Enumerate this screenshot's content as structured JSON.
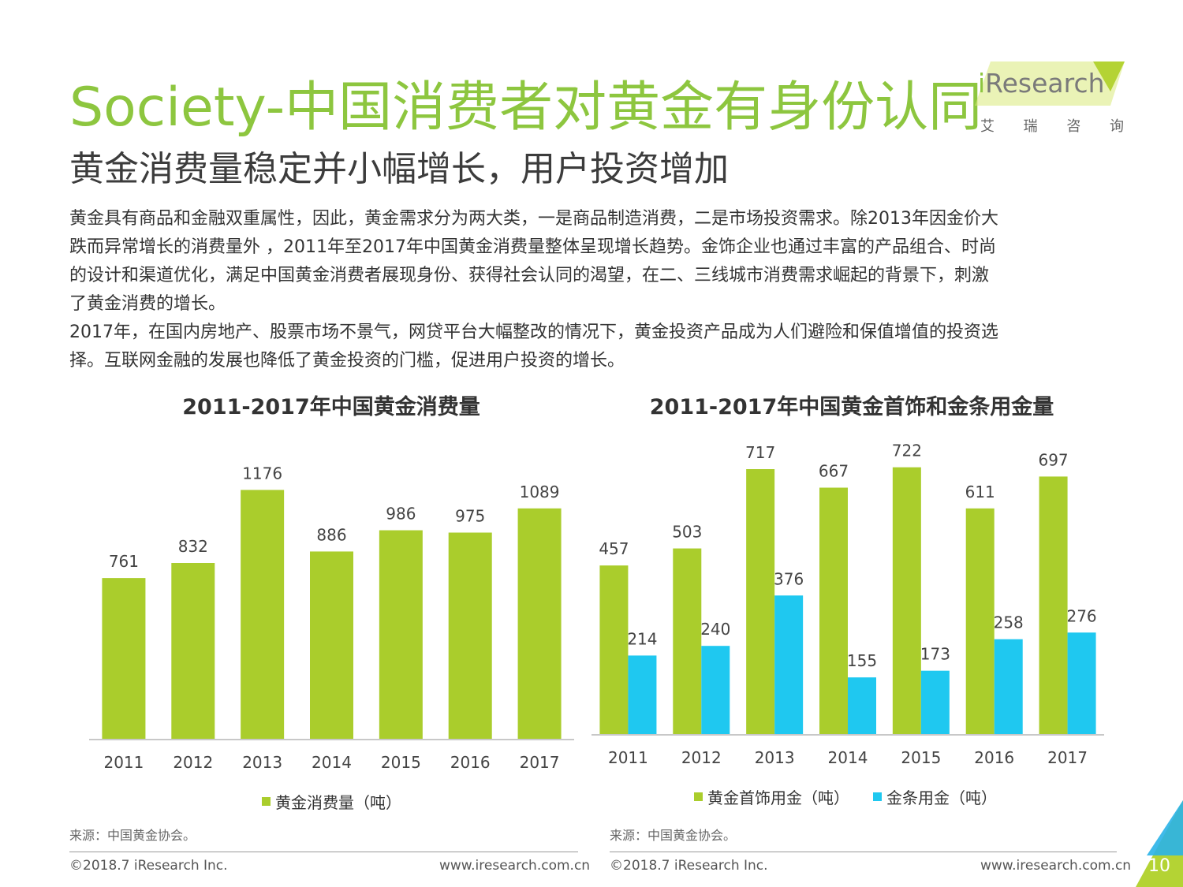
{
  "header": {
    "title": "Society-中国消费者对黄金有身份认同",
    "subtitle": "黄金消费量稳定并小幅增长，用户投资增加",
    "logo_text_i": "i",
    "logo_text_rest": "Research",
    "logo_sub": [
      "艾",
      "瑞",
      "咨",
      "询"
    ]
  },
  "body_text": [
    "黄金具有商品和金融双重属性，因此，黄金需求分为两大类，一是商品制造消费，二是市场投资需求。除2013年因金价大",
    "跌而异常增长的消费量外 ，2011年至2017年中国黄金消费量整体呈现增长趋势。金饰企业也通过丰富的产品组合、时尚",
    "的设计和渠道优化，满足中国黄金消费者展现身份、获得社会认同的渴望，在二、三线城市消费需求崛起的背景下，刺激",
    "了黄金消费的增长。",
    "2017年，在国内房地产、股票市场不景气，网贷平台大幅整改的情况下，黄金投资产品成为人们避险和保值增值的投资选",
    "择。互联网金融的发展也降低了黄金投资的门槛，促进用户投资的增长。"
  ],
  "colors": {
    "green": "#aacd2c",
    "blue": "#1fc8f0",
    "title_green": "#8dc63f"
  },
  "chart_data": [
    {
      "type": "bar",
      "title": "2011-2017年中国黄金消费量",
      "categories": [
        "2011",
        "2012",
        "2013",
        "2014",
        "2015",
        "2016",
        "2017"
      ],
      "series": [
        {
          "name": "黄金消费量（吨）",
          "values": [
            761,
            832,
            1176,
            886,
            986,
            975,
            1089
          ]
        }
      ],
      "ylim": [
        0,
        1300
      ],
      "grid": false,
      "legend_position": "bottom",
      "source": "来源：中国黄金协会。"
    },
    {
      "type": "bar",
      "title": "2011-2017年中国黄金首饰和金条用金量",
      "categories": [
        "2011",
        "2012",
        "2013",
        "2014",
        "2015",
        "2016",
        "2017"
      ],
      "series": [
        {
          "name": "黄金首饰用金（吨）",
          "values": [
            457,
            503,
            717,
            667,
            722,
            611,
            697
          ]
        },
        {
          "name": "金条用金（吨）",
          "values": [
            214,
            240,
            376,
            155,
            173,
            258,
            276
          ]
        }
      ],
      "ylim": [
        0,
        800
      ],
      "grid": false,
      "legend_position": "bottom",
      "source": "来源：中国黄金协会。"
    }
  ],
  "footer": {
    "copyright_left": "©2018.7 iResearch Inc.",
    "url_left": "www.iresearch.com.cn",
    "copyright_right": "©2018.7 iResearch Inc.",
    "url_right": "www.iresearch.com.cn",
    "page_number": "10"
  }
}
